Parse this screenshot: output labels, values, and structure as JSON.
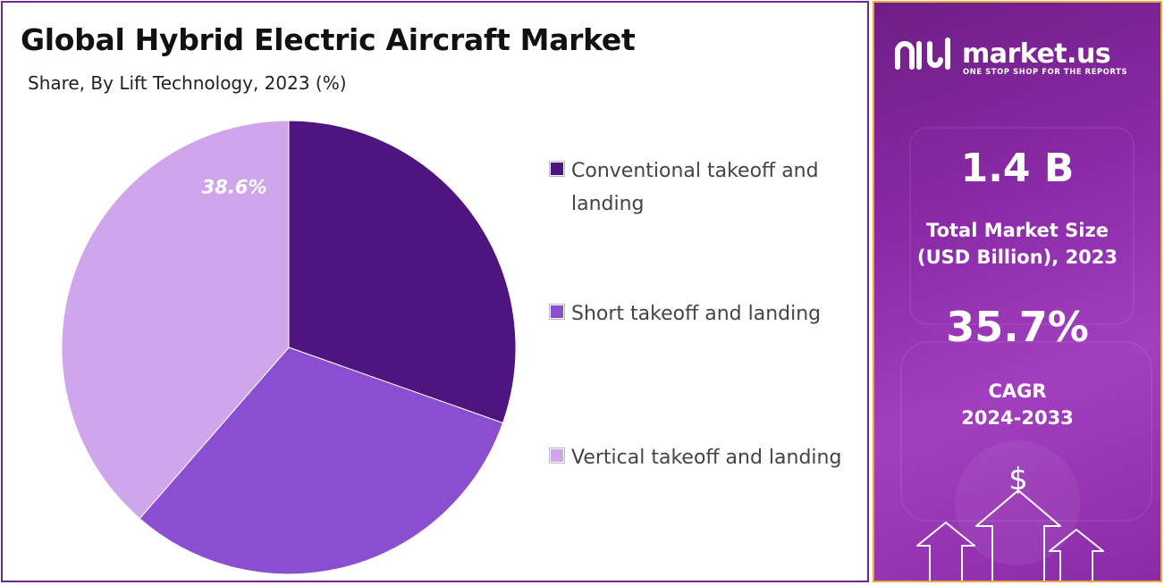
{
  "header": {
    "title": "Global Hybrid Electric Aircraft Market",
    "subtitle": "Share, By Lift Technology, 2023 (%)"
  },
  "chart_data": {
    "type": "pie",
    "title": "Global Hybrid Electric Aircraft Market",
    "subtitle": "Share, By Lift Technology, 2023 (%)",
    "categories": [
      "Conventional takeoff and landing",
      "Short takeoff and landing",
      "Vertical takeoff and landing"
    ],
    "values": [
      30.4,
      31.0,
      38.6
    ],
    "colors": [
      "#4e1580",
      "#8a4fd1",
      "#cfa6ec"
    ],
    "data_labels": {
      "2": "38.6%"
    },
    "start_angle_deg": 0,
    "direction": "clockwise",
    "legend": "right"
  },
  "legend": {
    "items": [
      {
        "label": "Conventional takeoff and landing",
        "color": "#4e1580"
      },
      {
        "label": "Short takeoff and landing",
        "color": "#8a4fd1"
      },
      {
        "label": "Vertical takeoff and landing",
        "color": "#cfa6ec"
      }
    ]
  },
  "sidebar": {
    "brand": "market.us",
    "tagline": "ONE STOP SHOP FOR THE REPORTS",
    "market_size_value": "1.4 B",
    "market_size_label": "Total Market Size (USD Billion), 2023",
    "cagr_value": "35.7%",
    "cagr_label": "CAGR",
    "cagr_period": "2024-2033",
    "icon": "dollar-growth-arrows-icon",
    "colors": {
      "panel_start": "#6f1e86",
      "panel_end": "#a23fbf",
      "border": "#e9a93a"
    }
  }
}
